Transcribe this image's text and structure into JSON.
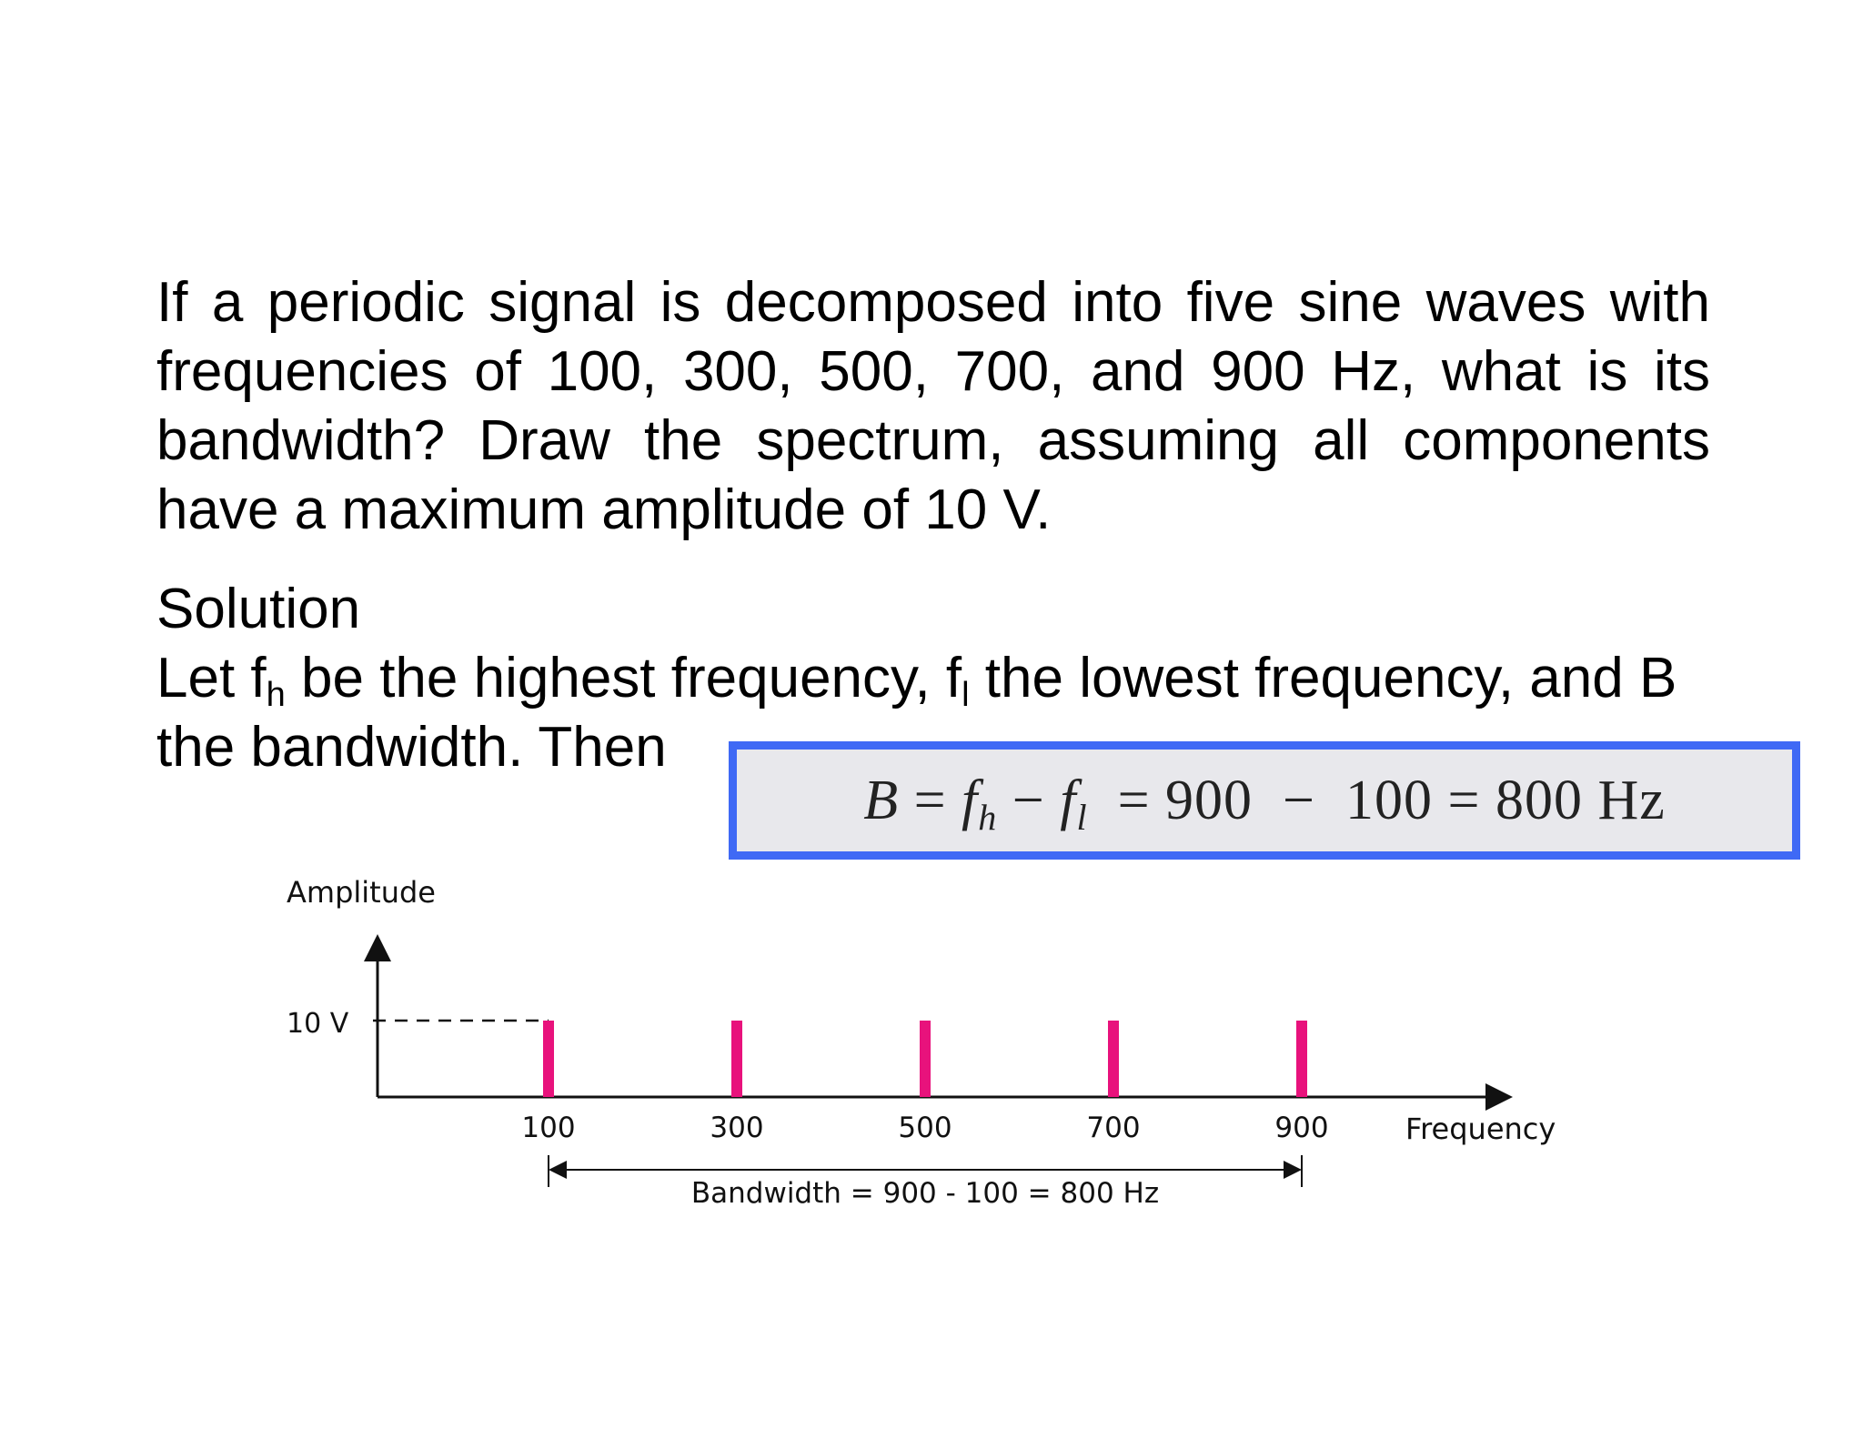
{
  "question": "If a periodic signal is decomposed into five sine waves with frequencies of 100, 300, 500, 700, and 900 Hz, what is its bandwidth? Draw the spectrum, assuming all components have a maximum amplitude of 10 V.",
  "solution": {
    "heading": "Solution",
    "line_parts": {
      "p1": "Let f",
      "sub_h": "h",
      "p2": " be the highest frequency, f",
      "sub_l": "l",
      "p3": " the lowest frequency, and B the bandwidth. Then"
    }
  },
  "formula": {
    "b": "B",
    "eq1": " = ",
    "f": "f",
    "h": "h",
    "minus": " − ",
    "l": "l",
    "rest": "  = 900  −  100 = 800 Hz"
  },
  "colors": {
    "box_border": "#3f69f5",
    "box_fill": "#e8e8ec",
    "bars": "#e8127c"
  },
  "chart_data": {
    "type": "bar",
    "title": "",
    "xlabel": "Frequency",
    "ylabel": "Amplitude",
    "categories": [
      "100",
      "300",
      "500",
      "700",
      "900"
    ],
    "x": [
      100,
      300,
      500,
      700,
      900
    ],
    "values": [
      10,
      10,
      10,
      10,
      10
    ],
    "ytick_label": "10 V",
    "annotation": "Bandwidth = 900 - 100 = 800 Hz",
    "ylim": [
      0,
      10
    ],
    "grid": false,
    "legend": "none"
  }
}
